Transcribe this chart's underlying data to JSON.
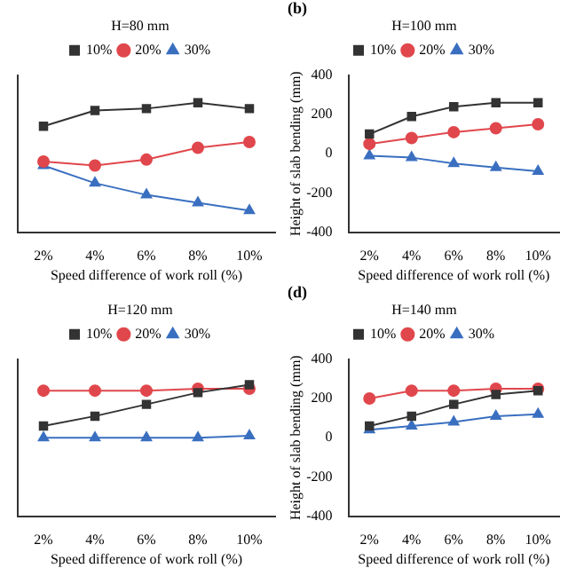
{
  "chart_data": [
    {
      "type": "line",
      "legend_title": "H=80 mm",
      "xlabel": "Speed difference of work roll (%)",
      "categories": [
        "2%",
        "4%",
        "6%",
        "8%",
        "10%"
      ],
      "ylim": [
        -400,
        400
      ],
      "yticks": [
        -400,
        -200,
        0,
        200,
        400
      ],
      "tick_labels": "x",
      "legend": "top",
      "grid": false,
      "series": [
        {
          "name": "10%",
          "color": "#333333",
          "marker": "square",
          "values": [
            140,
            220,
            230,
            260,
            230
          ]
        },
        {
          "name": "20%",
          "color": "#e0474c",
          "marker": "circle",
          "values": [
            -40,
            -60,
            -30,
            30,
            60
          ]
        },
        {
          "name": "30%",
          "color": "#3a6fc0",
          "marker": "triangle",
          "values": [
            -60,
            -150,
            -210,
            -250,
            -290
          ]
        }
      ]
    },
    {
      "type": "line",
      "title": "(b)",
      "legend_title": "H=100 mm",
      "xlabel": "Speed difference of work roll (%)",
      "ylabel": "Height of slab bending (mm)",
      "categories": [
        "2%",
        "4%",
        "6%",
        "8%",
        "10%"
      ],
      "ylim": [
        -400,
        400
      ],
      "yticks": [
        -400,
        -200,
        0,
        200,
        400
      ],
      "legend": "top",
      "grid": false,
      "series": [
        {
          "name": "10%",
          "color": "#333333",
          "marker": "square",
          "values": [
            100,
            190,
            240,
            260,
            260
          ]
        },
        {
          "name": "20%",
          "color": "#e0474c",
          "marker": "circle",
          "values": [
            50,
            80,
            110,
            130,
            150
          ]
        },
        {
          "name": "30%",
          "color": "#3a6fc0",
          "marker": "triangle",
          "values": [
            -10,
            -20,
            -50,
            -70,
            -90
          ]
        }
      ]
    },
    {
      "type": "line",
      "legend_title": "H=120 mm",
      "xlabel": "Speed difference of work roll (%)",
      "categories": [
        "2%",
        "4%",
        "6%",
        "8%",
        "10%"
      ],
      "ylim": [
        -400,
        400
      ],
      "yticks": [
        -400,
        -200,
        0,
        200,
        400
      ],
      "tick_labels": "x",
      "legend": "top",
      "grid": false,
      "series": [
        {
          "name": "10%",
          "color": "#333333",
          "marker": "square",
          "values": [
            60,
            110,
            170,
            230,
            270
          ]
        },
        {
          "name": "20%",
          "color": "#e0474c",
          "marker": "circle",
          "values": [
            240,
            240,
            240,
            250,
            250
          ]
        },
        {
          "name": "30%",
          "color": "#3a6fc0",
          "marker": "triangle",
          "values": [
            0,
            0,
            0,
            0,
            10
          ]
        }
      ]
    },
    {
      "type": "line",
      "title": "(d)",
      "legend_title": "H=140 mm",
      "xlabel": "Speed difference of work roll (%)",
      "ylabel": "Height of slab bending (mm)",
      "categories": [
        "2%",
        "4%",
        "6%",
        "8%",
        "10%"
      ],
      "ylim": [
        -400,
        400
      ],
      "yticks": [
        -400,
        -200,
        0,
        200,
        400
      ],
      "legend": "top",
      "grid": false,
      "series": [
        {
          "name": "10%",
          "color": "#333333",
          "marker": "square",
          "values": [
            60,
            110,
            170,
            220,
            240
          ]
        },
        {
          "name": "20%",
          "color": "#e0474c",
          "marker": "circle",
          "values": [
            200,
            240,
            240,
            250,
            250
          ]
        },
        {
          "name": "30%",
          "color": "#3a6fc0",
          "marker": "triangle",
          "values": [
            40,
            60,
            80,
            110,
            120
          ]
        }
      ]
    }
  ]
}
